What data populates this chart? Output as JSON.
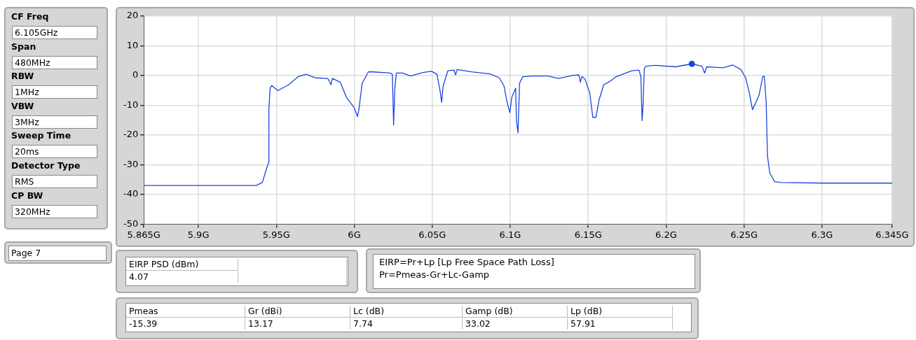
{
  "chart_data": {
    "type": "line",
    "xlim": [
      5.865,
      6.345
    ],
    "xticks": [
      {
        "value": 5.865,
        "label": "5.865G"
      },
      {
        "value": 5.9,
        "label": "5.9G"
      },
      {
        "value": 5.95,
        "label": "5.95G"
      },
      {
        "value": 6.0,
        "label": "6G"
      },
      {
        "value": 6.05,
        "label": "6.05G"
      },
      {
        "value": 6.1,
        "label": "6.1G"
      },
      {
        "value": 6.15,
        "label": "6.15G"
      },
      {
        "value": 6.2,
        "label": "6.2G"
      },
      {
        "value": 6.25,
        "label": "6.25G"
      },
      {
        "value": 6.3,
        "label": "6.3G"
      },
      {
        "value": 6.345,
        "label": "6.345G"
      }
    ],
    "ylim": [
      -50,
      20
    ],
    "yticks": [
      -50,
      -40,
      -30,
      -20,
      -10,
      0,
      10,
      20
    ],
    "grid": true,
    "series": [
      {
        "type": "line",
        "color": "#1a46e0",
        "x": [
          5.865,
          5.937,
          5.941,
          5.943,
          5.945,
          5.9452,
          5.946,
          5.947,
          5.951,
          5.958,
          5.964,
          5.969,
          5.975,
          5.983,
          5.985,
          5.986,
          5.991,
          5.995,
          6.0,
          6.002,
          6.003,
          6.005,
          6.009,
          6.012,
          6.023,
          6.0244,
          6.025,
          6.0252,
          6.026,
          6.027,
          6.031,
          6.036,
          6.044,
          6.0495,
          6.053,
          6.055,
          6.056,
          6.057,
          6.06,
          6.064,
          6.065,
          6.066,
          6.075,
          6.087,
          6.093,
          6.096,
          6.098,
          6.0998,
          6.101,
          6.1035,
          6.104,
          6.105,
          6.106,
          6.108,
          6.115,
          6.124,
          6.131,
          6.14,
          6.144,
          6.145,
          6.146,
          6.148,
          6.151,
          6.153,
          6.155,
          6.157,
          6.16,
          6.164,
          6.168,
          6.178,
          6.1826,
          6.1838,
          6.1846,
          6.1852,
          6.186,
          6.187,
          6.193,
          6.206,
          6.2165,
          6.223,
          6.2247,
          6.226,
          6.2365,
          6.2427,
          6.248,
          6.251,
          6.2534,
          6.2554,
          6.2573,
          6.2596,
          6.262,
          6.263,
          6.2642,
          6.265,
          6.2665,
          6.2696,
          6.2735,
          6.301,
          6.345
        ],
        "values": [
          -37,
          -37,
          -36,
          -32.5,
          -29.3,
          -11.3,
          -4.3,
          -3.4,
          -5.1,
          -3.1,
          -0.4,
          0.4,
          -0.8,
          -1,
          -3.1,
          -1,
          -2.3,
          -7.4,
          -10.9,
          -13.8,
          -11.3,
          -2.7,
          1.2,
          1.2,
          0.8,
          0.4,
          -12.1,
          -16.7,
          -4.3,
          0.8,
          0.8,
          -0.2,
          1,
          1.4,
          0.4,
          -5.1,
          -9,
          -3.5,
          1.6,
          1.8,
          0.2,
          2,
          1.2,
          0.5,
          -0.8,
          -3.5,
          -9,
          -12.5,
          -7.4,
          -4.3,
          -15.2,
          -19.3,
          -2.7,
          -0.4,
          -0.2,
          -0.2,
          -1,
          0,
          0.2,
          -2.3,
          -0.4,
          -1.2,
          -5.9,
          -14.1,
          -14.1,
          -8.2,
          -3.1,
          -2,
          -0.4,
          1.6,
          1.8,
          -0.4,
          -15.2,
          -10.2,
          2.3,
          3.1,
          3.4,
          2.9,
          3.9,
          3.1,
          0.8,
          2.9,
          2.6,
          3.5,
          2,
          -0.8,
          -5.9,
          -11.5,
          -9.4,
          -6.6,
          -0.4,
          -0.2,
          -9,
          -27,
          -32.8,
          -35.7,
          -36,
          -36.2,
          -36.2
        ]
      },
      {
        "type": "scatter",
        "color": "#1a46e0",
        "marker": "circle",
        "x": [
          6.2165
        ],
        "values": [
          3.9
        ]
      }
    ],
    "annotations": [
      "CF Freq",
      "6.105GHz",
      "Span",
      "480MHz",
      "RBW",
      "1MHz",
      "VBW",
      "3MHz",
      "Sweep Time",
      "20ms",
      "Detector Type",
      "RMS",
      "CP BW",
      "320MHz",
      "Page 7",
      "EIRP PSD (dBm)",
      "4.07",
      "EIRP=Pr+Lp [Lp Free Space Path Loss]",
      "Pr=Pmeas-Gr+Lc-Gamp",
      "Pmeas",
      "Gr (dBi)",
      "Lc (dB)",
      "Gamp (dB)",
      "Lp (dB)",
      "-15.39",
      "13.17",
      "7.74",
      "33.02",
      "57.91"
    ]
  }
}
